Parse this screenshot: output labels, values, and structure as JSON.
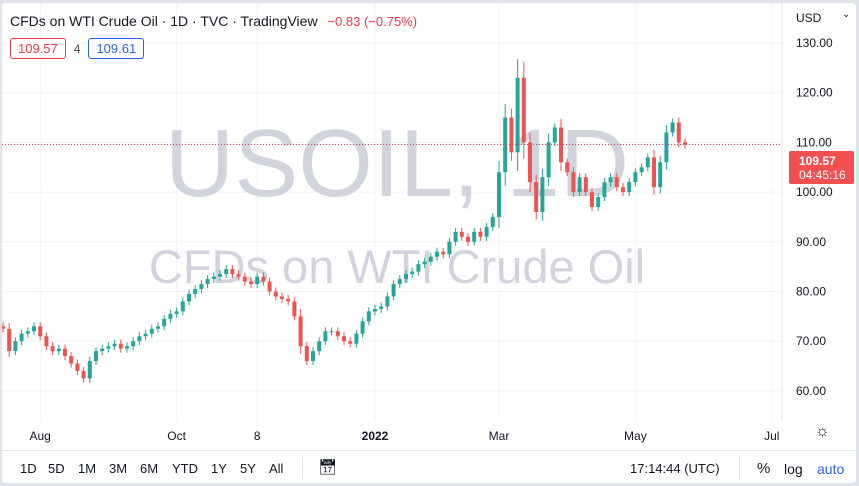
{
  "header": {
    "title": "CFDs on WTI Crude Oil · 1D · TVC · TradingView",
    "change": "−0.83 (−0.75%)",
    "bid": "109.57",
    "spread": "4",
    "ask": "109.61"
  },
  "currency": "USD",
  "last_price": {
    "price": "109.57",
    "countdown": "04:45:16",
    "color": "#f0504f"
  },
  "watermark": {
    "symbol": "USOIL, 1D",
    "name": "CFDs on WTI Crude Oil"
  },
  "toolbar": {
    "ranges": [
      "1D",
      "5D",
      "1M",
      "3M",
      "6M",
      "YTD",
      "1Y",
      "5Y",
      "All"
    ],
    "time": "17:14:44 (UTC)",
    "percent": "%",
    "log": "log",
    "auto": "auto"
  },
  "chart_data": {
    "type": "candlestick",
    "ylim": [
      57,
      135
    ],
    "y_ticks": [
      "130.00",
      "120.00",
      "110.00",
      "100.00",
      "90.00",
      "80.00",
      "70.00",
      "60.00"
    ],
    "x_ticks": [
      {
        "label": "Aug",
        "index": 6
      },
      {
        "label": "Oct",
        "index": 28
      },
      {
        "label": "8",
        "index": 41
      },
      {
        "label": "2022",
        "index": 60
      },
      {
        "label": "Mar",
        "index": 80
      },
      {
        "label": "May",
        "index": 102
      },
      {
        "label": "Jul",
        "index": 124
      }
    ],
    "up_color": "#26a69a",
    "down_color": "#ef5350",
    "close": [
      72.5,
      68,
      70,
      71.5,
      72,
      73,
      71,
      69,
      68,
      68.5,
      67,
      65.5,
      64,
      62.5,
      66,
      68,
      68.5,
      69,
      69.5,
      68.5,
      69,
      70,
      71,
      71.5,
      72.5,
      73,
      74.5,
      75.5,
      76,
      78,
      79.5,
      80.5,
      81.5,
      82.5,
      83,
      83.5,
      84.5,
      83.5,
      83,
      82,
      81.5,
      83,
      82,
      80,
      79,
      78.5,
      78,
      75,
      69,
      66,
      68,
      70,
      72,
      72,
      71,
      70,
      69.5,
      71.5,
      74,
      76,
      76.5,
      77,
      79,
      81.5,
      82.5,
      83.5,
      84,
      85.5,
      86,
      87,
      88,
      87.5,
      90,
      92,
      91,
      90,
      92,
      91,
      93,
      95,
      104,
      115,
      108,
      123,
      110,
      102,
      96,
      103,
      110,
      113,
      106,
      104,
      100,
      103,
      100,
      97,
      99,
      102,
      103,
      101,
      100,
      102,
      104,
      105,
      107,
      101,
      106,
      112,
      114,
      110,
      109.57
    ]
  }
}
